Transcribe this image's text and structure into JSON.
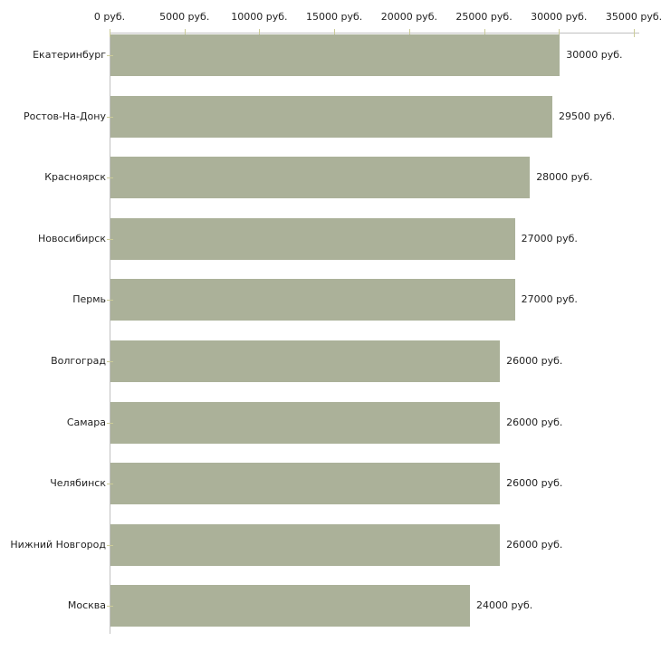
{
  "chart_data": {
    "type": "bar",
    "orientation": "horizontal",
    "title": "",
    "xlabel": "",
    "ylabel": "",
    "xlim": [
      0,
      35000
    ],
    "grid": false,
    "legend": null,
    "categories": [
      "Екатеринбург",
      "Ростов-На-Дону",
      "Красноярск",
      "Новосибирск",
      "Пермь",
      "Волгоград",
      "Самара",
      "Челябинск",
      "Нижний Новгород",
      "Москва"
    ],
    "values": [
      30000,
      29500,
      28000,
      27000,
      27000,
      26000,
      26000,
      26000,
      26000,
      24000
    ],
    "value_labels": [
      "30000 руб.",
      "29500 руб.",
      "28000 руб.",
      "27000 руб.",
      "27000 руб.",
      "26000 руб.",
      "26000 руб.",
      "26000 руб.",
      "26000 руб.",
      "24000 руб."
    ],
    "x_ticks": [
      {
        "value": 0,
        "label": "0 руб."
      },
      {
        "value": 5000,
        "label": "5000 руб."
      },
      {
        "value": 10000,
        "label": "10000 руб."
      },
      {
        "value": 15000,
        "label": "15000 руб."
      },
      {
        "value": 20000,
        "label": "20000 руб."
      },
      {
        "value": 25000,
        "label": "25000 руб."
      },
      {
        "value": 30000,
        "label": "30000 руб."
      },
      {
        "value": 35000,
        "label": "35000 руб."
      }
    ],
    "colors": {
      "bar": "#abb199",
      "axis_line": "#c0c0c0",
      "tick_mark": "#cccc99",
      "text": "#222222",
      "background": "#ffffff"
    }
  }
}
